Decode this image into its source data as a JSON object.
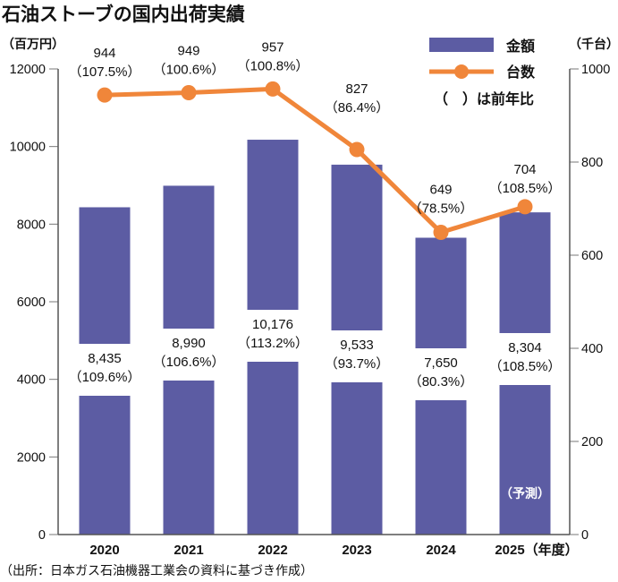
{
  "title": "石油ストーブの国内出荷実績",
  "source": "（出所：日本ガス石油機器工業会の資料に基づき作成）",
  "colors": {
    "bar": "#5c5ca3",
    "line": "#f0863a",
    "axis": "#555555"
  },
  "chart_data": {
    "type": "bar+line",
    "title": "石油ストーブの国内出荷実績",
    "categories": [
      "2020",
      "2021",
      "2022",
      "2023",
      "2024",
      "2025"
    ],
    "x_suffix_last": "（年度）",
    "forecast_label": "（予測）",
    "forecast_index": 5,
    "y_left": {
      "label": "（百万円）",
      "min": 0,
      "max": 12000,
      "ticks": [
        0,
        2000,
        4000,
        6000,
        8000,
        10000,
        12000
      ]
    },
    "y_right": {
      "label": "（千台）",
      "min": 0,
      "max": 1000,
      "ticks": [
        0,
        200,
        400,
        600,
        800,
        1000
      ]
    },
    "series": [
      {
        "name": "金額",
        "type": "bar",
        "axis": "left",
        "values": [
          8435,
          8990,
          10176,
          9533,
          7650,
          8304
        ],
        "value_labels": [
          "8,435",
          "8,990",
          "10,176",
          "9,533",
          "7,650",
          "8,304"
        ],
        "yoy_labels": [
          "（109.6%）",
          "（106.6%）",
          "（113.2%）",
          "（93.7%）",
          "（80.3%）",
          "（108.5%）"
        ]
      },
      {
        "name": "台数",
        "type": "line",
        "axis": "right",
        "values": [
          944,
          949,
          957,
          827,
          649,
          704
        ],
        "value_labels": [
          "944",
          "949",
          "957",
          "827",
          "649",
          "704"
        ],
        "yoy_labels": [
          "（107.5%）",
          "（100.6%）",
          "（100.8%）",
          "（86.4%）",
          "（78.5%）",
          "（108.5%）"
        ]
      }
    ],
    "legend": {
      "position": "top-right",
      "items": [
        "金額",
        "台数"
      ],
      "note": "（　）は前年比"
    }
  }
}
